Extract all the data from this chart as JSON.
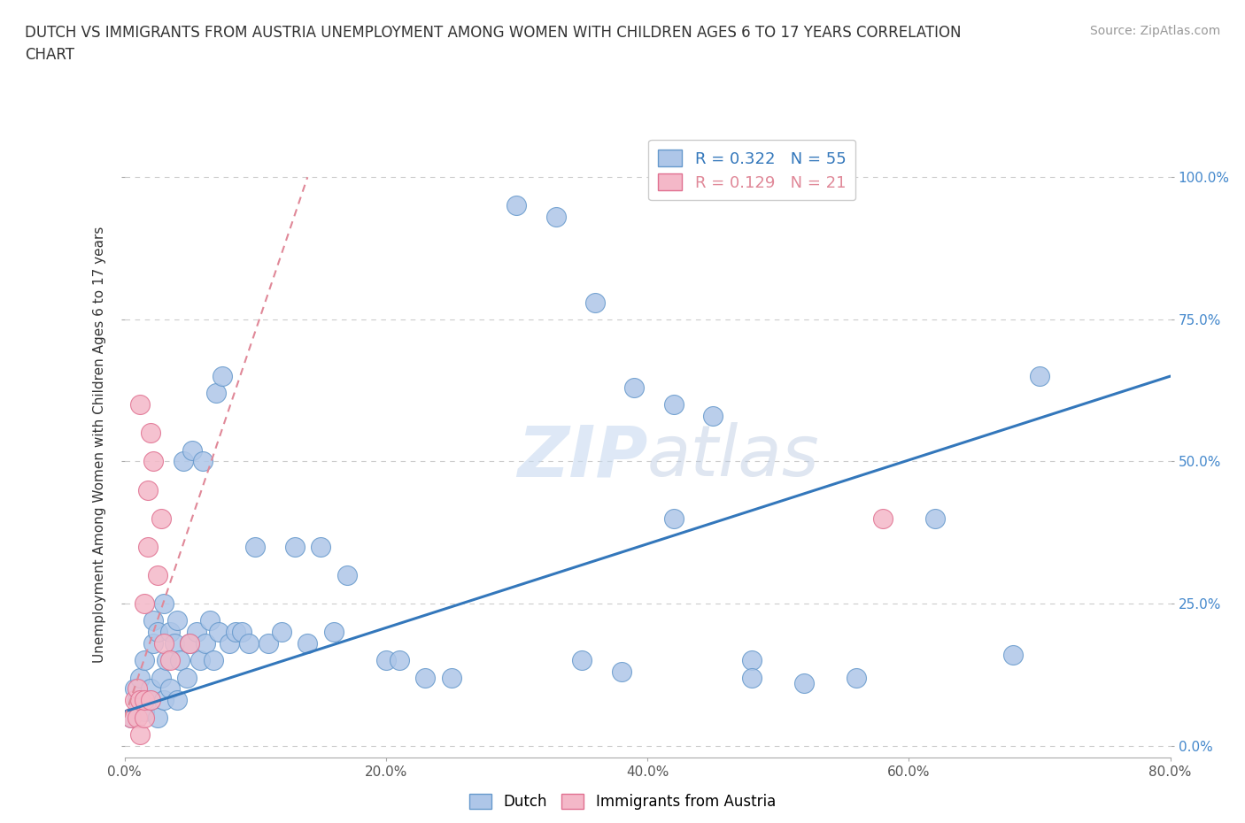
{
  "title": "DUTCH VS IMMIGRANTS FROM AUSTRIA UNEMPLOYMENT AMONG WOMEN WITH CHILDREN AGES 6 TO 17 YEARS CORRELATION\nCHART",
  "source": "Source: ZipAtlas.com",
  "ylabel": "Unemployment Among Women with Children Ages 6 to 17 years",
  "watermark": "ZIPatlas",
  "xlim": [
    0.0,
    0.8
  ],
  "ylim": [
    -0.02,
    1.08
  ],
  "xticks": [
    0.0,
    0.2,
    0.4,
    0.6,
    0.8
  ],
  "xticklabels": [
    "0.0%",
    "20.0%",
    "40.0%",
    "60.0%",
    "80.0%"
  ],
  "yticks": [
    0.0,
    0.25,
    0.5,
    0.75,
    1.0
  ],
  "yticklabels_right": [
    "0.0%",
    "25.0%",
    "50.0%",
    "75.0%",
    "100.0%"
  ],
  "dutch_color": "#aec6e8",
  "dutch_edge": "#6699cc",
  "austria_color": "#f4b8c8",
  "austria_edge": "#e07090",
  "dutch_R": 0.322,
  "dutch_N": 55,
  "austria_R": 0.129,
  "austria_N": 21,
  "dutch_line_color": "#3377bb",
  "austria_line_color": "#e08898",
  "grid_color": "#cccccc",
  "background_color": "#ffffff",
  "dutch_x": [
    0.005,
    0.008,
    0.01,
    0.012,
    0.015,
    0.015,
    0.018,
    0.02,
    0.022,
    0.022,
    0.025,
    0.025,
    0.028,
    0.03,
    0.03,
    0.032,
    0.035,
    0.035,
    0.038,
    0.04,
    0.04,
    0.042,
    0.045,
    0.048,
    0.05,
    0.052,
    0.055,
    0.058,
    0.06,
    0.062,
    0.065,
    0.068,
    0.07,
    0.072,
    0.075,
    0.08,
    0.085,
    0.09,
    0.095,
    0.1,
    0.11,
    0.12,
    0.13,
    0.14,
    0.15,
    0.16,
    0.17,
    0.2,
    0.21,
    0.23,
    0.25,
    0.35,
    0.38,
    0.42,
    0.48
  ],
  "dutch_y": [
    0.05,
    0.1,
    0.08,
    0.12,
    0.06,
    0.15,
    0.08,
    0.1,
    0.18,
    0.22,
    0.05,
    0.2,
    0.12,
    0.08,
    0.25,
    0.15,
    0.1,
    0.2,
    0.18,
    0.08,
    0.22,
    0.15,
    0.5,
    0.12,
    0.18,
    0.52,
    0.2,
    0.15,
    0.5,
    0.18,
    0.22,
    0.15,
    0.62,
    0.2,
    0.65,
    0.18,
    0.2,
    0.2,
    0.18,
    0.35,
    0.18,
    0.2,
    0.35,
    0.18,
    0.35,
    0.2,
    0.3,
    0.15,
    0.15,
    0.12,
    0.12,
    0.15,
    0.13,
    0.4,
    0.15
  ],
  "dutch_x2": [
    0.3,
    0.33,
    0.36,
    0.39,
    0.42,
    0.45,
    0.48,
    0.52,
    0.56,
    0.62,
    0.68,
    0.7
  ],
  "dutch_y2": [
    0.95,
    0.93,
    0.78,
    0.63,
    0.6,
    0.58,
    0.12,
    0.11,
    0.12,
    0.4,
    0.16,
    0.65
  ],
  "austria_x": [
    0.005,
    0.008,
    0.01,
    0.01,
    0.012,
    0.012,
    0.012,
    0.015,
    0.015,
    0.015,
    0.018,
    0.018,
    0.02,
    0.02,
    0.022,
    0.025,
    0.028,
    0.03,
    0.035,
    0.05,
    0.58
  ],
  "austria_y": [
    0.05,
    0.08,
    0.05,
    0.1,
    0.02,
    0.08,
    0.6,
    0.05,
    0.08,
    0.25,
    0.35,
    0.45,
    0.08,
    0.55,
    0.5,
    0.3,
    0.4,
    0.18,
    0.15,
    0.18,
    0.4
  ],
  "blue_line_x0": 0.0,
  "blue_line_y0": 0.06,
  "blue_line_x1": 0.8,
  "blue_line_y1": 0.65,
  "pink_line_x0": 0.0,
  "pink_line_y0": 0.05,
  "pink_line_x1": 0.14,
  "pink_line_y1": 1.0
}
